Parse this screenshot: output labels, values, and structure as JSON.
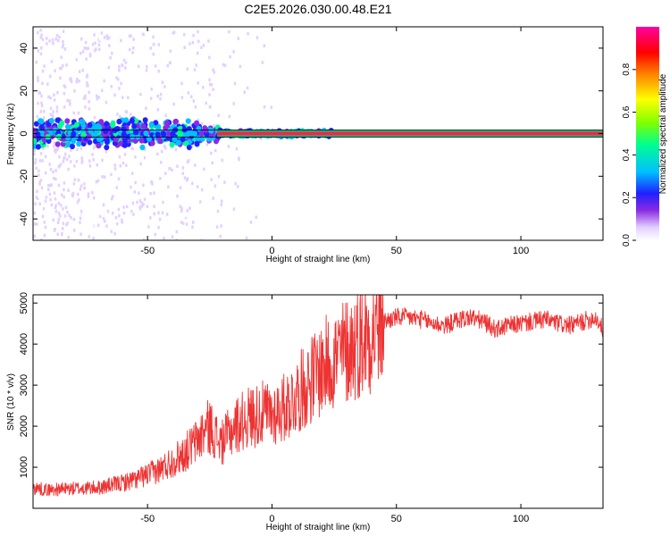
{
  "page_title": "C2E5.2026.030.00.48.E21",
  "chart_data": [
    {
      "type": "heatmap",
      "title": "C2E5.2026.030.00.48.E21",
      "xlabel": "Height of straight line (km)",
      "ylabel": "Frequency (Hz)",
      "xlim": [
        -96,
        133
      ],
      "ylim": [
        -50,
        50
      ],
      "xticks": [
        -50,
        0,
        50,
        100
      ],
      "yticks": [
        -40,
        -20,
        0,
        20,
        40
      ],
      "carrier_line_hz": 0,
      "colorbar": {
        "label": "Normalized spectral amplitude",
        "range": [
          0,
          1
        ],
        "ticks": [
          0.0,
          0.2,
          0.4,
          0.6,
          0.8
        ],
        "colors": [
          "#ffffff",
          "#e3d0ff",
          "#8a2be2",
          "#2020ff",
          "#00c0ff",
          "#00ff90",
          "#7fff00",
          "#ffff00",
          "#ff8000",
          "#ff0000",
          "#ff00a0"
        ]
      },
      "grid": false
    },
    {
      "type": "line",
      "title": "",
      "xlabel": "Height of straight line (km)",
      "ylabel": "SNR (10 * v/v)",
      "xlim": [
        -96,
        133
      ],
      "ylim": [
        0,
        5200
      ],
      "xticks": [
        -50,
        0,
        50,
        100
      ],
      "yticks": [
        1000,
        2000,
        3000,
        4000,
        5000
      ],
      "color": "#ee3333",
      "series": [
        {
          "x": [
            -96,
            -90,
            -80,
            -70,
            -60,
            -55,
            -50,
            -45,
            -40,
            -35,
            -30,
            -27,
            -25,
            -22,
            -20,
            -15,
            -10,
            -5,
            0,
            5,
            10,
            15,
            20,
            25,
            30,
            35,
            40,
            45,
            50,
            55,
            60,
            65,
            70,
            75,
            80,
            85,
            90,
            95,
            100,
            105,
            110,
            115,
            120,
            125,
            130,
            133
          ],
          "values": [
            500,
            450,
            480,
            500,
            620,
            700,
            820,
            950,
            1150,
            1350,
            1650,
            1900,
            2000,
            1700,
            1600,
            2000,
            2200,
            2300,
            2300,
            2450,
            2750,
            3100,
            3400,
            3650,
            3850,
            4050,
            4300,
            4550,
            4650,
            4650,
            4600,
            4500,
            4450,
            4600,
            4650,
            4550,
            4350,
            4450,
            4500,
            4550,
            4600,
            4500,
            4450,
            4550,
            4650,
            4350
          ]
        }
      ],
      "grid": false
    }
  ]
}
